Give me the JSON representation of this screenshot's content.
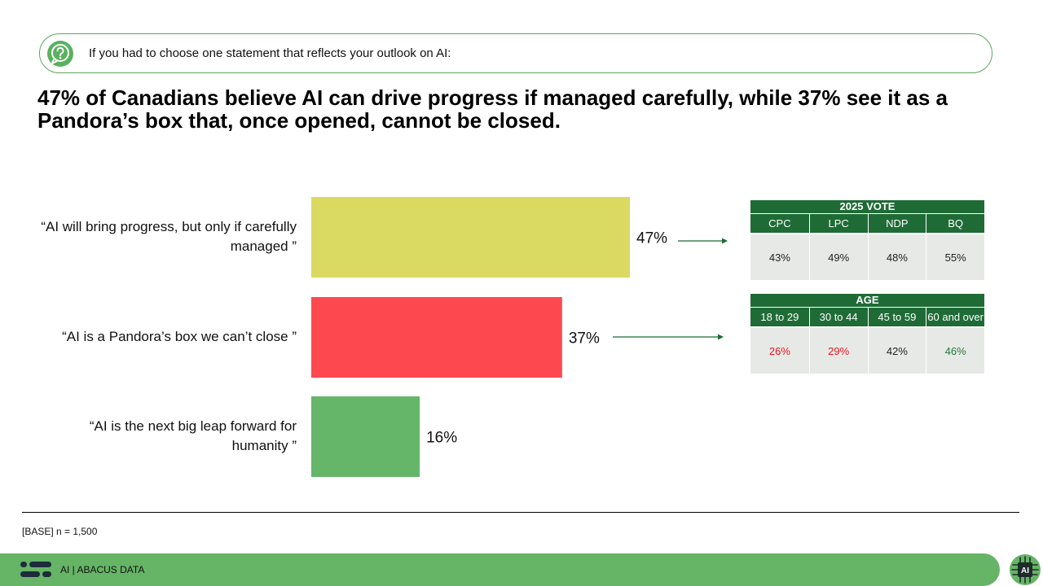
{
  "question": "If you had to choose one statement that reflects your outlook on AI:",
  "headline": "47% of Canadians believe AI can drive progress if managed carefully, while 37% see it as a Pandora’s box that, once opened, cannot be closed.",
  "chart_data": {
    "type": "bar",
    "orientation": "horizontal",
    "categories": [
      "“AI will bring progress, but only if carefully managed ”",
      "“AI is a Pandora’s box we can’t close ”",
      "“AI is the next big leap forward for humanity ”"
    ],
    "values": [
      47,
      37,
      16
    ],
    "value_labels": [
      "47%",
      "37%",
      "16%"
    ],
    "colors": [
      "#dada62",
      "#fd4850",
      "#65b669"
    ],
    "xlim": [
      0,
      100
    ],
    "grid": false
  },
  "vote_table": {
    "title": "2025 VOTE",
    "headers": [
      "CPC",
      "LPC",
      "NDP",
      "BQ"
    ],
    "values": [
      "43%",
      "49%",
      "48%",
      "55%"
    ],
    "colors": [
      "#222222",
      "#222222",
      "#222222",
      "#222222"
    ]
  },
  "age_table": {
    "title": "AGE",
    "headers": [
      "18 to 29",
      "30 to 44",
      "45 to 59",
      "60 and over"
    ],
    "values": [
      "26%",
      "29%",
      "42%",
      "46%"
    ],
    "colors": [
      "#e8161f",
      "#e8161f",
      "#222222",
      "#1f7a3a"
    ]
  },
  "base_note": "[BASE] n = 1,500",
  "footer": "AI  |  ABACUS DATA",
  "badge_text": "AI",
  "accent_colors": {
    "dark_green": "#1f6b36",
    "green": "#66b466",
    "table_bg": "#e7e9e6"
  }
}
